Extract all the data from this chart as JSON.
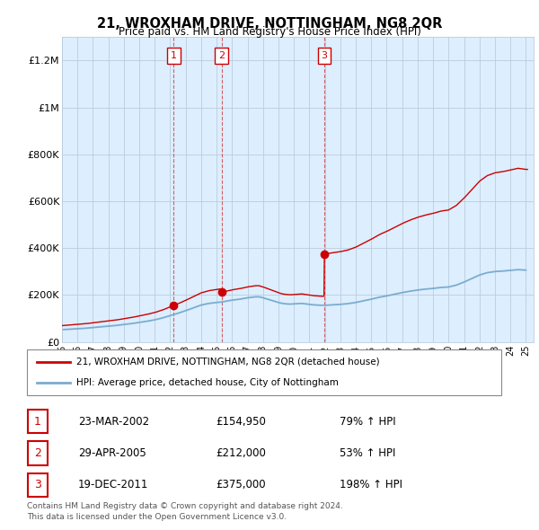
{
  "title": "21, WROXHAM DRIVE, NOTTINGHAM, NG8 2QR",
  "subtitle": "Price paid vs. HM Land Registry's House Price Index (HPI)",
  "legend_line1": "21, WROXHAM DRIVE, NOTTINGHAM, NG8 2QR (detached house)",
  "legend_line2": "HPI: Average price, detached house, City of Nottingham",
  "footnote1": "Contains HM Land Registry data © Crown copyright and database right 2024.",
  "footnote2": "This data is licensed under the Open Government Licence v3.0.",
  "table": [
    {
      "num": "1",
      "date": "23-MAR-2002",
      "price": "£154,950",
      "change": "79% ↑ HPI"
    },
    {
      "num": "2",
      "date": "29-APR-2005",
      "price": "£212,000",
      "change": "53% ↑ HPI"
    },
    {
      "num": "3",
      "date": "19-DEC-2011",
      "price": "£375,000",
      "change": "198% ↑ HPI"
    }
  ],
  "sale_t": [
    2002.22,
    2005.33,
    2011.96
  ],
  "sale_p": [
    154950,
    212000,
    375000
  ],
  "sale_labels": [
    "1",
    "2",
    "3"
  ],
  "ylim": [
    0,
    1300000
  ],
  "yticks": [
    0,
    200000,
    400000,
    600000,
    800000,
    1000000,
    1200000
  ],
  "ytick_labels": [
    "£0",
    "£200K",
    "£400K",
    "£600K",
    "£800K",
    "£1M",
    "£1.2M"
  ],
  "xlim_start": 1995.0,
  "xlim_end": 2025.5,
  "red_color": "#cc0000",
  "blue_color": "#7aadcf",
  "bg_fill_color": "#ddeeff",
  "background_color": "#ffffff",
  "grid_color": "#bbccdd",
  "hpi_points": [
    [
      1995.0,
      52000
    ],
    [
      1995.5,
      54000
    ],
    [
      1996.0,
      56000
    ],
    [
      1996.5,
      58000
    ],
    [
      1997.0,
      61000
    ],
    [
      1997.5,
      64000
    ],
    [
      1998.0,
      67000
    ],
    [
      1998.5,
      70000
    ],
    [
      1999.0,
      74000
    ],
    [
      1999.5,
      78000
    ],
    [
      2000.0,
      83000
    ],
    [
      2000.5,
      88000
    ],
    [
      2001.0,
      94000
    ],
    [
      2001.5,
      102000
    ],
    [
      2002.0,
      112000
    ],
    [
      2002.5,
      122000
    ],
    [
      2003.0,
      133000
    ],
    [
      2003.5,
      145000
    ],
    [
      2004.0,
      157000
    ],
    [
      2004.5,
      164000
    ],
    [
      2005.0,
      168000
    ],
    [
      2005.33,
      170000
    ],
    [
      2005.5,
      172000
    ],
    [
      2006.0,
      178000
    ],
    [
      2006.5,
      182000
    ],
    [
      2007.0,
      188000
    ],
    [
      2007.5,
      192000
    ],
    [
      2007.75,
      192000
    ],
    [
      2008.0,
      188000
    ],
    [
      2008.5,
      178000
    ],
    [
      2009.0,
      168000
    ],
    [
      2009.25,
      164000
    ],
    [
      2009.5,
      162000
    ],
    [
      2009.75,
      161000
    ],
    [
      2010.0,
      162000
    ],
    [
      2010.25,
      163000
    ],
    [
      2010.5,
      164000
    ],
    [
      2010.75,
      162000
    ],
    [
      2011.0,
      160000
    ],
    [
      2011.25,
      158000
    ],
    [
      2011.5,
      157000
    ],
    [
      2011.75,
      156000
    ],
    [
      2011.96,
      156000
    ],
    [
      2012.0,
      156000
    ],
    [
      2012.5,
      158000
    ],
    [
      2013.0,
      160000
    ],
    [
      2013.5,
      163000
    ],
    [
      2014.0,
      168000
    ],
    [
      2014.5,
      175000
    ],
    [
      2015.0,
      182000
    ],
    [
      2015.5,
      190000
    ],
    [
      2016.0,
      196000
    ],
    [
      2016.5,
      203000
    ],
    [
      2017.0,
      210000
    ],
    [
      2017.5,
      216000
    ],
    [
      2018.0,
      221000
    ],
    [
      2018.5,
      225000
    ],
    [
      2019.0,
      228000
    ],
    [
      2019.5,
      232000
    ],
    [
      2020.0,
      234000
    ],
    [
      2020.5,
      242000
    ],
    [
      2021.0,
      255000
    ],
    [
      2021.5,
      270000
    ],
    [
      2022.0,
      285000
    ],
    [
      2022.5,
      295000
    ],
    [
      2023.0,
      300000
    ],
    [
      2023.5,
      302000
    ],
    [
      2024.0,
      305000
    ],
    [
      2024.5,
      308000
    ],
    [
      2025.0,
      306000
    ]
  ]
}
